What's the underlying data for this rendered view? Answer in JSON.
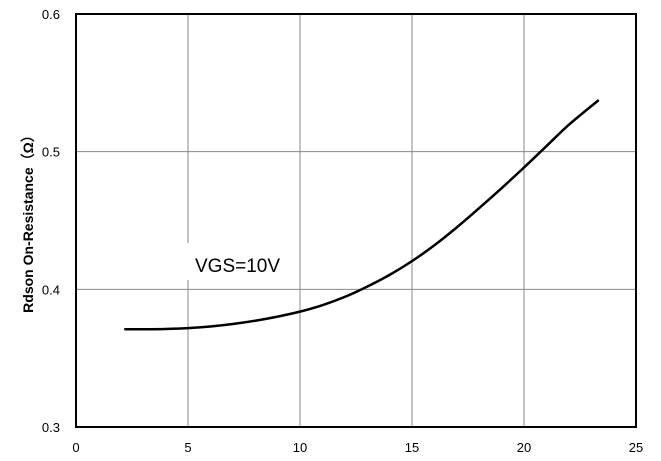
{
  "chart_data": {
    "type": "line",
    "title": "",
    "xlabel": "",
    "ylabel": "Rdson On-Resistance（Ω）",
    "xlim": [
      0,
      25
    ],
    "ylim": [
      0.3,
      0.6
    ],
    "x_ticks": [
      "0",
      "5",
      "10",
      "15",
      "20",
      "25"
    ],
    "y_ticks": [
      "0.3",
      "0.4",
      "0.5",
      "0.6"
    ],
    "grid": true,
    "annotation": "VGS=10V",
    "series": [
      {
        "color": "#000000",
        "x": [
          2.2,
          3,
          4,
          5,
          6,
          7,
          8,
          9,
          10,
          11,
          12,
          13,
          14,
          15,
          16,
          17,
          18,
          19,
          20,
          21,
          22,
          23.3
        ],
        "y": [
          0.371,
          0.371,
          0.3712,
          0.3718,
          0.373,
          0.3748,
          0.3772,
          0.3802,
          0.3838,
          0.3885,
          0.3945,
          0.402,
          0.4105,
          0.4205,
          0.432,
          0.445,
          0.459,
          0.4735,
          0.4885,
          0.504,
          0.5195,
          0.537
        ]
      }
    ]
  }
}
